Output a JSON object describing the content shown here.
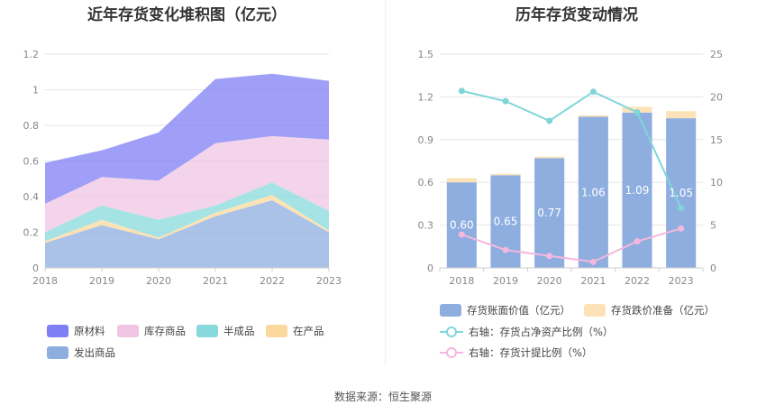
{
  "chart_data": [
    {
      "type": "area",
      "stacked": true,
      "title": "近年存货变化堆积图（亿元）",
      "categories": [
        "2018",
        "2019",
        "2020",
        "2021",
        "2022",
        "2023"
      ],
      "ylim": [
        0,
        1.2
      ],
      "yticks": [
        "0",
        "0.2",
        "0.4",
        "0.6",
        "0.8",
        "1",
        "1.2"
      ],
      "series": [
        {
          "name": "发出商品",
          "color": "#8eaee0",
          "values": [
            0.14,
            0.24,
            0.16,
            0.29,
            0.38,
            0.2
          ]
        },
        {
          "name": "在产品",
          "color": "#fbd99c",
          "values": [
            0.01,
            0.03,
            0.01,
            0.02,
            0.03,
            0.01
          ]
        },
        {
          "name": "半成品",
          "color": "#87d9dc",
          "values": [
            0.05,
            0.08,
            0.1,
            0.04,
            0.07,
            0.11
          ]
        },
        {
          "name": "库存商品",
          "color": "#f0c5e3",
          "values": [
            0.16,
            0.16,
            0.22,
            0.35,
            0.26,
            0.4
          ]
        },
        {
          "name": "原材料",
          "color": "#7f7ff5",
          "values": [
            0.23,
            0.15,
            0.27,
            0.36,
            0.35,
            0.33
          ]
        }
      ],
      "legend": [
        {
          "name": "原材料",
          "color": "#7f7ff5"
        },
        {
          "name": "库存商品",
          "color": "#f0c5e3"
        },
        {
          "name": "半成品",
          "color": "#87d9dc"
        },
        {
          "name": "在产品",
          "color": "#fbd99c"
        },
        {
          "name": "发出商品",
          "color": "#8eaee0"
        }
      ]
    },
    {
      "type": "bar",
      "title": "历年存货变动情况",
      "categories": [
        "2018",
        "2019",
        "2020",
        "2021",
        "2022",
        "2023"
      ],
      "left_ylim": [
        0,
        1.5
      ],
      "left_yticks": [
        "0",
        "0.3",
        "0.6",
        "0.9",
        "1.2",
        "1.5"
      ],
      "right_ylim": [
        0,
        25
      ],
      "right_yticks": [
        "0",
        "5",
        "10",
        "15",
        "20",
        "25"
      ],
      "bars": [
        {
          "name": "存货账面价值（亿元）",
          "color": "#8eaee0",
          "values": [
            0.6,
            0.65,
            0.77,
            1.06,
            1.09,
            1.05
          ],
          "labels": [
            "0.60",
            "0.65",
            "0.77",
            "1.06",
            "1.09",
            "1.05"
          ]
        },
        {
          "name": "存货跌价准备（亿元）",
          "color": "#fde2b8",
          "values": [
            0.03,
            0.01,
            0.01,
            0.01,
            0.04,
            0.05
          ]
        }
      ],
      "lines": [
        {
          "name": "右轴：存货占净资产比例（%）",
          "color": "#7fd6d8",
          "values": [
            20.7,
            19.5,
            17.2,
            20.6,
            18.2,
            7.0
          ]
        },
        {
          "name": "右轴：存货计提比例（%）",
          "color": "#f4b8dd",
          "values": [
            3.9,
            2.1,
            1.4,
            0.7,
            3.1,
            4.6
          ]
        }
      ]
    }
  ],
  "source_label": "数据来源：恒生聚源"
}
